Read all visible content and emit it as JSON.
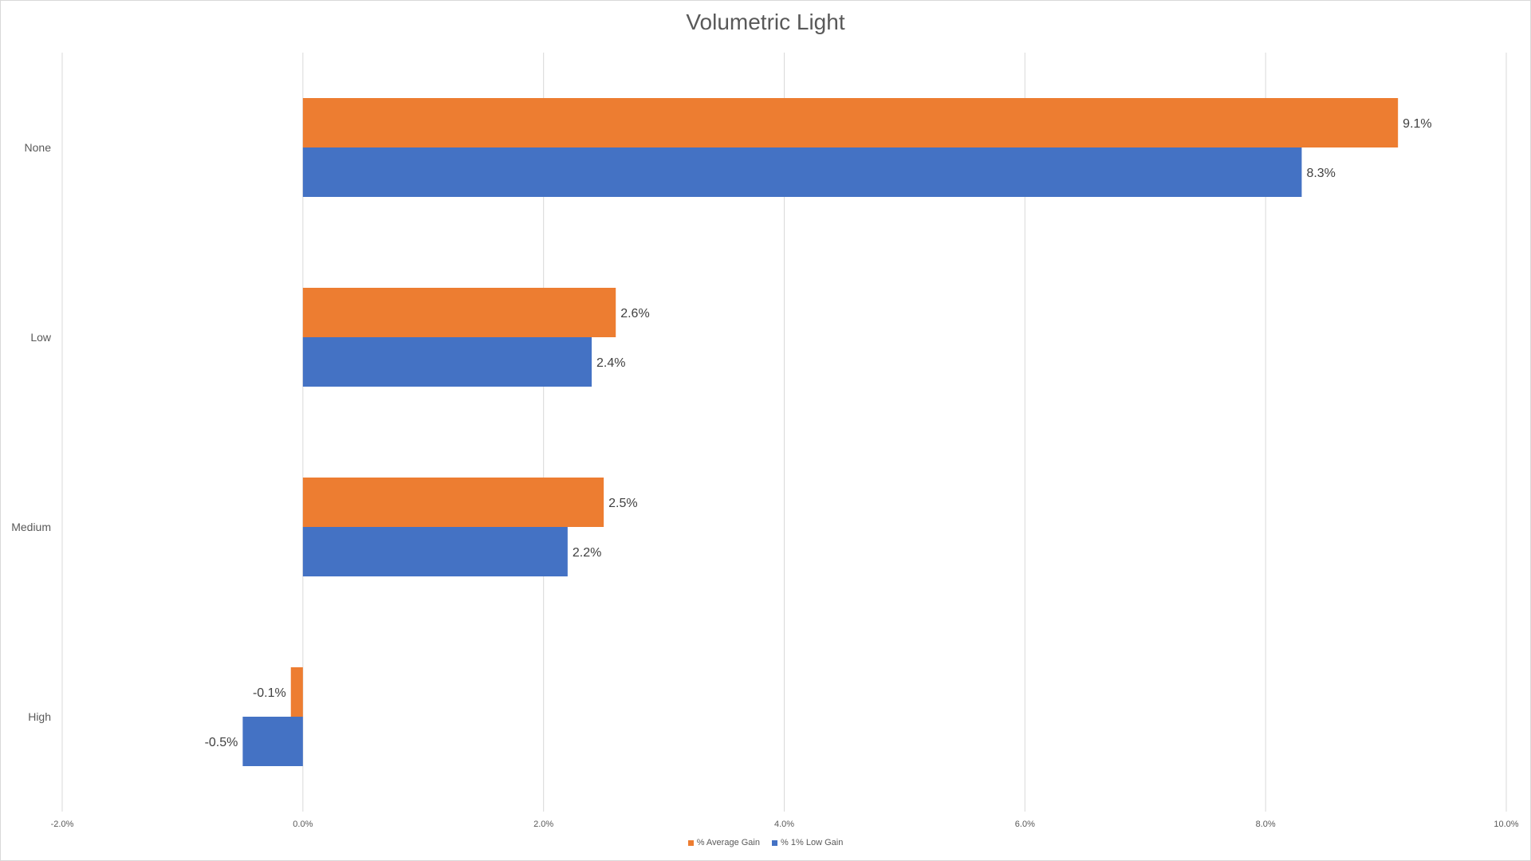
{
  "chart_data": {
    "type": "bar",
    "orientation": "horizontal",
    "title": "Volumetric Light",
    "categories": [
      "None",
      "Low",
      "Medium",
      "High"
    ],
    "series": [
      {
        "name": "% Average Gain",
        "color": "#ED7D31",
        "values": [
          9.1,
          2.6,
          2.5,
          -0.1
        ],
        "labels": [
          "9.1%",
          "2.6%",
          "2.5%",
          "-0.1%"
        ]
      },
      {
        "name": "% 1% Low Gain",
        "color": "#4472C4",
        "values": [
          8.3,
          2.4,
          2.2,
          -0.5
        ],
        "labels": [
          "8.3%",
          "2.4%",
          "2.2%",
          "-0.5%"
        ]
      }
    ],
    "xlim": [
      -2,
      10
    ],
    "xticks": [
      -2,
      0,
      2,
      4,
      6,
      8,
      10
    ],
    "xtick_labels": [
      "-2.0%",
      "0.0%",
      "2.0%",
      "4.0%",
      "6.0%",
      "8.0%",
      "10.0%"
    ],
    "xlabel": "",
    "ylabel": "",
    "grid": true,
    "legend": "bottom"
  }
}
